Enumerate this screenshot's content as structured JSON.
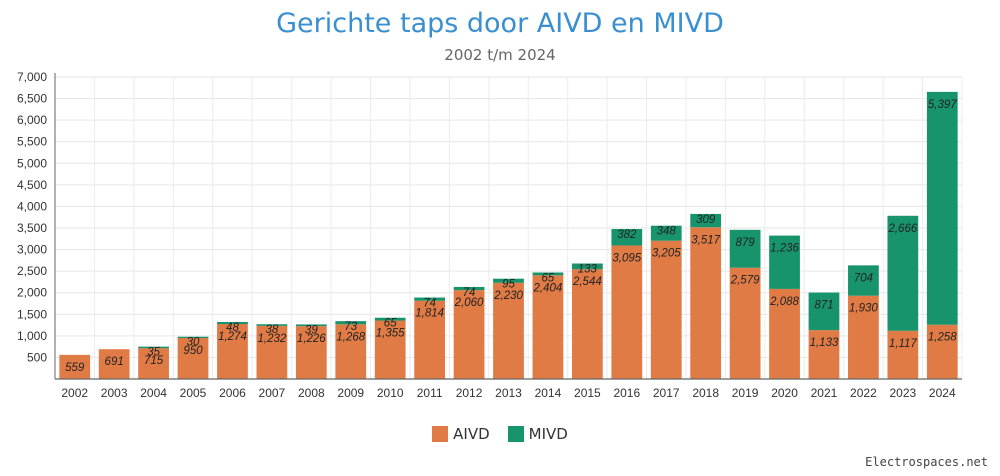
{
  "chart_data": {
    "type": "bar",
    "stacked": true,
    "title": "Gerichte taps door AIVD en MIVD",
    "subtitle": "2002 t/m 2024",
    "categories": [
      "2002",
      "2003",
      "2004",
      "2005",
      "2006",
      "2007",
      "2008",
      "2009",
      "2010",
      "2011",
      "2012",
      "2013",
      "2014",
      "2015",
      "2016",
      "2017",
      "2018",
      "2019",
      "2020",
      "2021",
      "2022",
      "2023",
      "2024"
    ],
    "series": [
      {
        "name": "AIVD",
        "color": "#e07b45",
        "values": [
          559,
          691,
          715,
          950,
          1274,
          1232,
          1226,
          1268,
          1355,
          1814,
          2060,
          2230,
          2404,
          2544,
          3095,
          3205,
          3517,
          2579,
          2088,
          1133,
          1930,
          1117,
          1258
        ]
      },
      {
        "name": "MIVD",
        "color": "#17946c",
        "values": [
          0,
          0,
          35,
          30,
          48,
          38,
          39,
          73,
          65,
          74,
          74,
          95,
          65,
          133,
          382,
          348,
          309,
          879,
          1236,
          871,
          704,
          2666,
          5397
        ]
      }
    ],
    "yticks": [
      "7,000",
      "6,500",
      "6,000",
      "5,500",
      "5,000",
      "4,500",
      "4,000",
      "3,500",
      "3,000",
      "2,500",
      "2,000",
      "1,500",
      "1,000",
      "500"
    ],
    "ylim": [
      0,
      7000
    ],
    "grid": true,
    "legend_position": "bottom-center",
    "data_label_format": "thousands-comma, italic"
  },
  "legend": {
    "aivd_label": "AIVD",
    "mivd_label": "MIVD"
  },
  "watermark": "Electrospaces.net"
}
